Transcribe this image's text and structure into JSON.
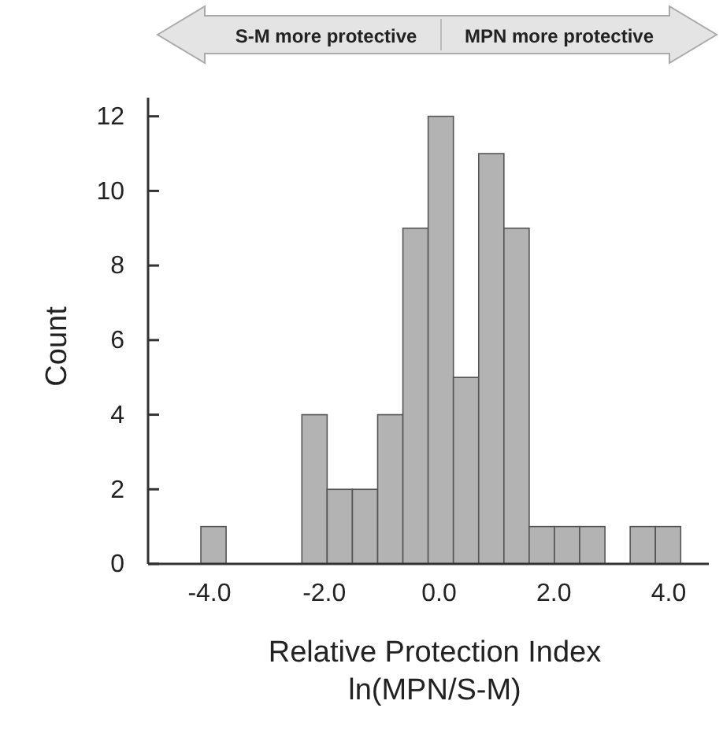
{
  "chart_data": {
    "type": "histogram",
    "xlabel": "Relative Protection Index\nln(MPN/S-M)",
    "ylabel": "Count",
    "annotations": [
      "S-M more protective",
      "MPN more protective"
    ],
    "bins": [
      -4.15,
      -3.71,
      -3.27,
      -2.83,
      -2.39,
      -1.95,
      -1.51,
      -1.07,
      -0.63,
      -0.19,
      0.25,
      0.69,
      1.13,
      1.57,
      2.01,
      2.45,
      2.89,
      3.33,
      3.77,
      4.21
    ],
    "values": [
      1,
      0,
      0,
      0,
      4,
      2,
      2,
      4,
      9,
      12,
      5,
      11,
      9,
      1,
      1,
      1,
      0,
      1,
      1
    ],
    "color": "#b3b3b3",
    "xlim": [
      -5.07,
      4.7
    ],
    "xticks": [
      {
        "value": -4,
        "label": "-4.0"
      },
      {
        "value": -2,
        "label": "-2.0"
      },
      {
        "value": 0,
        "label": "0.0"
      },
      {
        "value": 2,
        "label": "2.0"
      },
      {
        "value": 4,
        "label": "4.0"
      }
    ],
    "ylim": [
      0,
      12.5
    ],
    "yticks": [
      0,
      2,
      4,
      6,
      8,
      10,
      12
    ],
    "grid": false
  }
}
